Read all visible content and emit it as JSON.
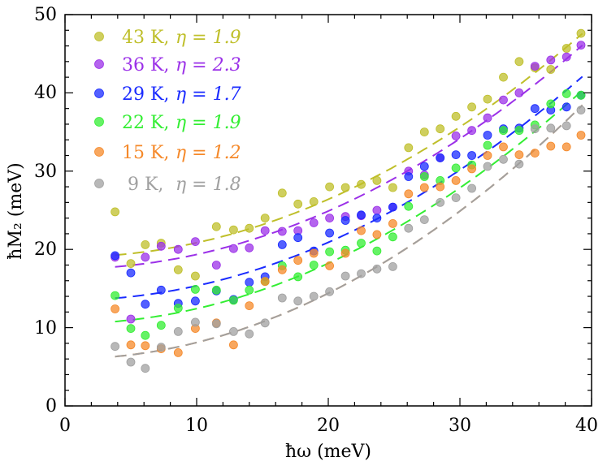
{
  "chart_data": {
    "type": "scatter",
    "title": "",
    "xlabel": "ħω (meV)",
    "ylabel": "ħM₂ (meV)",
    "xlim": [
      0,
      40
    ],
    "ylim": [
      0,
      50
    ],
    "x_ticks": [
      "0",
      "10",
      "20",
      "30",
      "40"
    ],
    "y_ticks": [
      "0",
      "10",
      "20",
      "30",
      "40",
      "50"
    ],
    "grid": false,
    "legend_position": "top-left",
    "x": [
      3.8,
      5.0,
      6.1,
      7.3,
      8.6,
      9.9,
      11.5,
      12.8,
      14.0,
      15.2,
      16.5,
      17.7,
      18.9,
      20.1,
      21.3,
      22.5,
      23.7,
      24.9,
      26.1,
      27.3,
      28.5,
      29.7,
      30.9,
      32.1,
      33.3,
      34.5,
      35.7,
      36.9,
      38.1,
      39.2
    ],
    "series": [
      {
        "name": "43 K",
        "eta": "1.9",
        "color": "#bfbf2a",
        "values": [
          24.8,
          18.2,
          20.6,
          20.8,
          17.4,
          16.6,
          22.9,
          22.5,
          22.7,
          24.0,
          27.2,
          25.8,
          26.1,
          28.0,
          27.9,
          28.3,
          28.8,
          27.9,
          33.0,
          35.0,
          35.4,
          37.0,
          38.2,
          39.2,
          42.0,
          44.0,
          43.2,
          43.0,
          45.7,
          47.6
        ],
        "fit_a": 19.0,
        "fit_b": 0.0185
      },
      {
        "name": "36 K",
        "eta": "2.3",
        "color": "#9b30e8",
        "values": [
          19.0,
          11.1,
          19.0,
          20.4,
          20.0,
          21.0,
          18.0,
          20.1,
          20.2,
          22.4,
          22.3,
          22.4,
          23.4,
          24.0,
          24.2,
          24.3,
          25.0,
          25.4,
          30.0,
          29.5,
          31.7,
          34.5,
          35.2,
          36.8,
          39.1,
          40.0,
          43.4,
          44.2,
          44.6,
          46.1
        ],
        "fit_a": 17.5,
        "fit_b": 0.0185
      },
      {
        "name": "29 K",
        "eta": "1.7",
        "color": "#1a2bff",
        "values": [
          19.2,
          17.0,
          13.0,
          14.8,
          13.1,
          13.4,
          14.7,
          13.6,
          15.8,
          16.5,
          20.6,
          21.5,
          19.8,
          22.1,
          23.7,
          24.4,
          24.0,
          25.4,
          29.3,
          30.6,
          31.7,
          32.1,
          32.0,
          34.6,
          35.4,
          35.5,
          38.0,
          37.8,
          38.2,
          39.7
        ],
        "fit_a": 13.5,
        "fit_b": 0.0185
      },
      {
        "name": "22 K",
        "eta": "1.9",
        "color": "#33ee33",
        "values": [
          14.1,
          9.9,
          9.0,
          10.3,
          12.5,
          14.9,
          14.8,
          13.5,
          14.8,
          15.9,
          17.9,
          16.5,
          18.0,
          19.7,
          19.9,
          20.8,
          19.8,
          21.6,
          25.5,
          29.3,
          28.8,
          30.4,
          30.8,
          33.3,
          35.2,
          35.2,
          35.9,
          38.6,
          39.9,
          39.7
        ],
        "fit_a": 10.5,
        "fit_b": 0.0193
      },
      {
        "name": "15 K",
        "eta": "1.2",
        "color": "#f5892a",
        "values": [
          12.4,
          7.8,
          7.7,
          7.3,
          6.8,
          9.9,
          10.6,
          7.8,
          12.8,
          15.9,
          17.4,
          18.6,
          19.5,
          17.9,
          19.5,
          22.4,
          21.9,
          23.3,
          27.1,
          27.9,
          28.0,
          28.8,
          30.3,
          32.0,
          33.1,
          32.1,
          32.3,
          33.2,
          33.1,
          34.6
        ],
        "fit_a": 6.0,
        "fit_b": 0.021
      },
      {
        "name": " 9 K",
        "eta": "1.8",
        "color": "#a0a0a0",
        "values": [
          7.6,
          5.6,
          4.8,
          7.5,
          9.5,
          10.7,
          10.5,
          9.5,
          9.2,
          10.6,
          13.8,
          13.4,
          14.0,
          14.6,
          16.6,
          16.9,
          17.5,
          17.8,
          22.7,
          23.8,
          26.0,
          26.6,
          27.8,
          30.6,
          31.5,
          30.9,
          35.4,
          35.5,
          35.8,
          37.8
        ],
        "fit_a": 6.0,
        "fit_b": 0.021
      }
    ],
    "legend_labels": [
      {
        "temp": "43 K,",
        "eta_label": "η = 1.9"
      },
      {
        "temp": "36 K,",
        "eta_label": "η = 2.3"
      },
      {
        "temp": "29 K,",
        "eta_label": "η = 1.7"
      },
      {
        "temp": "22 K,",
        "eta_label": "η = 1.9"
      },
      {
        "temp": "15 K,",
        "eta_label": "η = 1.2"
      },
      {
        "temp": " 9 K,",
        "eta_label": "η = 1.8"
      }
    ]
  }
}
